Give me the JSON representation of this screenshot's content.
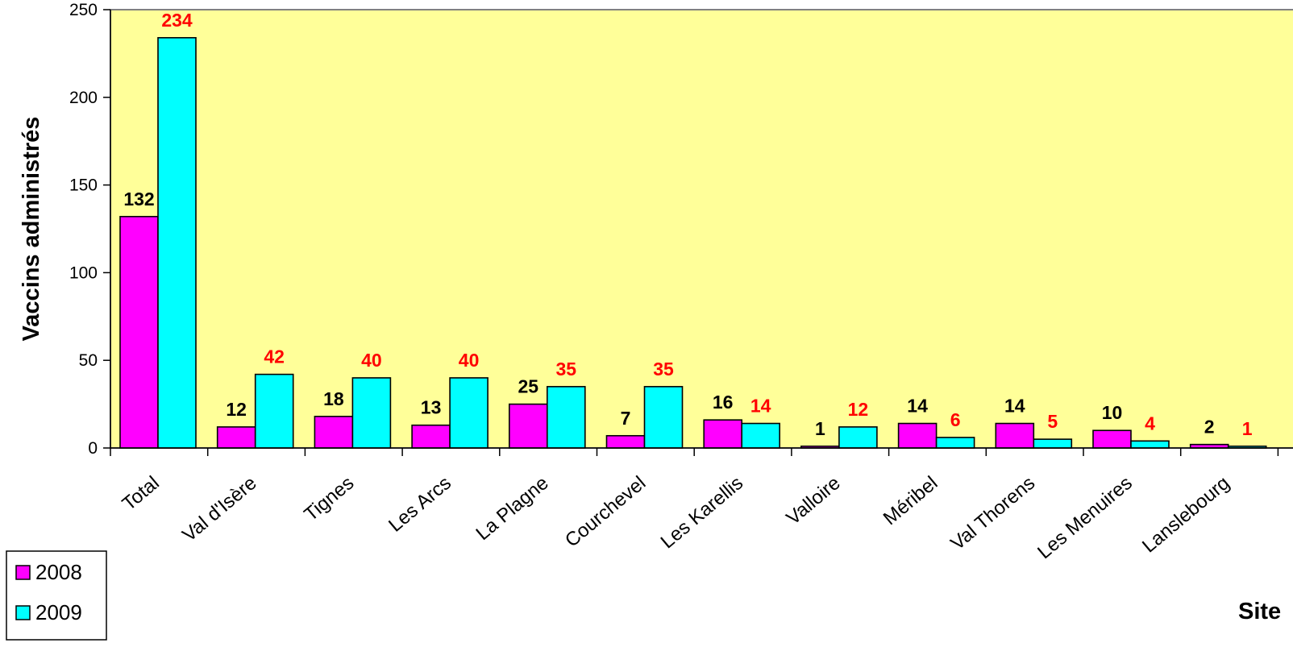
{
  "chart_data": {
    "type": "bar",
    "ylabel": "Vaccins administrés",
    "xlabel": "Site",
    "ylim": [
      0,
      250
    ],
    "yticks": [
      0,
      50,
      100,
      150,
      200,
      250
    ],
    "categories": [
      "Total",
      "Val d'Isère",
      "Tignes",
      "Les Arcs",
      "La Plagne",
      "Courchevel",
      "Les Karellis",
      "Valloire",
      "Méribel",
      "Val Thorens",
      "Les Menuires",
      "Lanslebourg"
    ],
    "series": [
      {
        "name": "2008",
        "color": "#ff00ff",
        "label_color": "#000000",
        "values": [
          132,
          12,
          18,
          13,
          25,
          7,
          16,
          1,
          14,
          14,
          10,
          2
        ]
      },
      {
        "name": "2009",
        "color": "#00ffff",
        "label_color": "#ff0000",
        "values": [
          234,
          42,
          40,
          40,
          35,
          35,
          14,
          12,
          6,
          5,
          4,
          1
        ]
      }
    ],
    "plot_background": "#ffff99",
    "grid": false,
    "legend_position": "bottom-left"
  }
}
